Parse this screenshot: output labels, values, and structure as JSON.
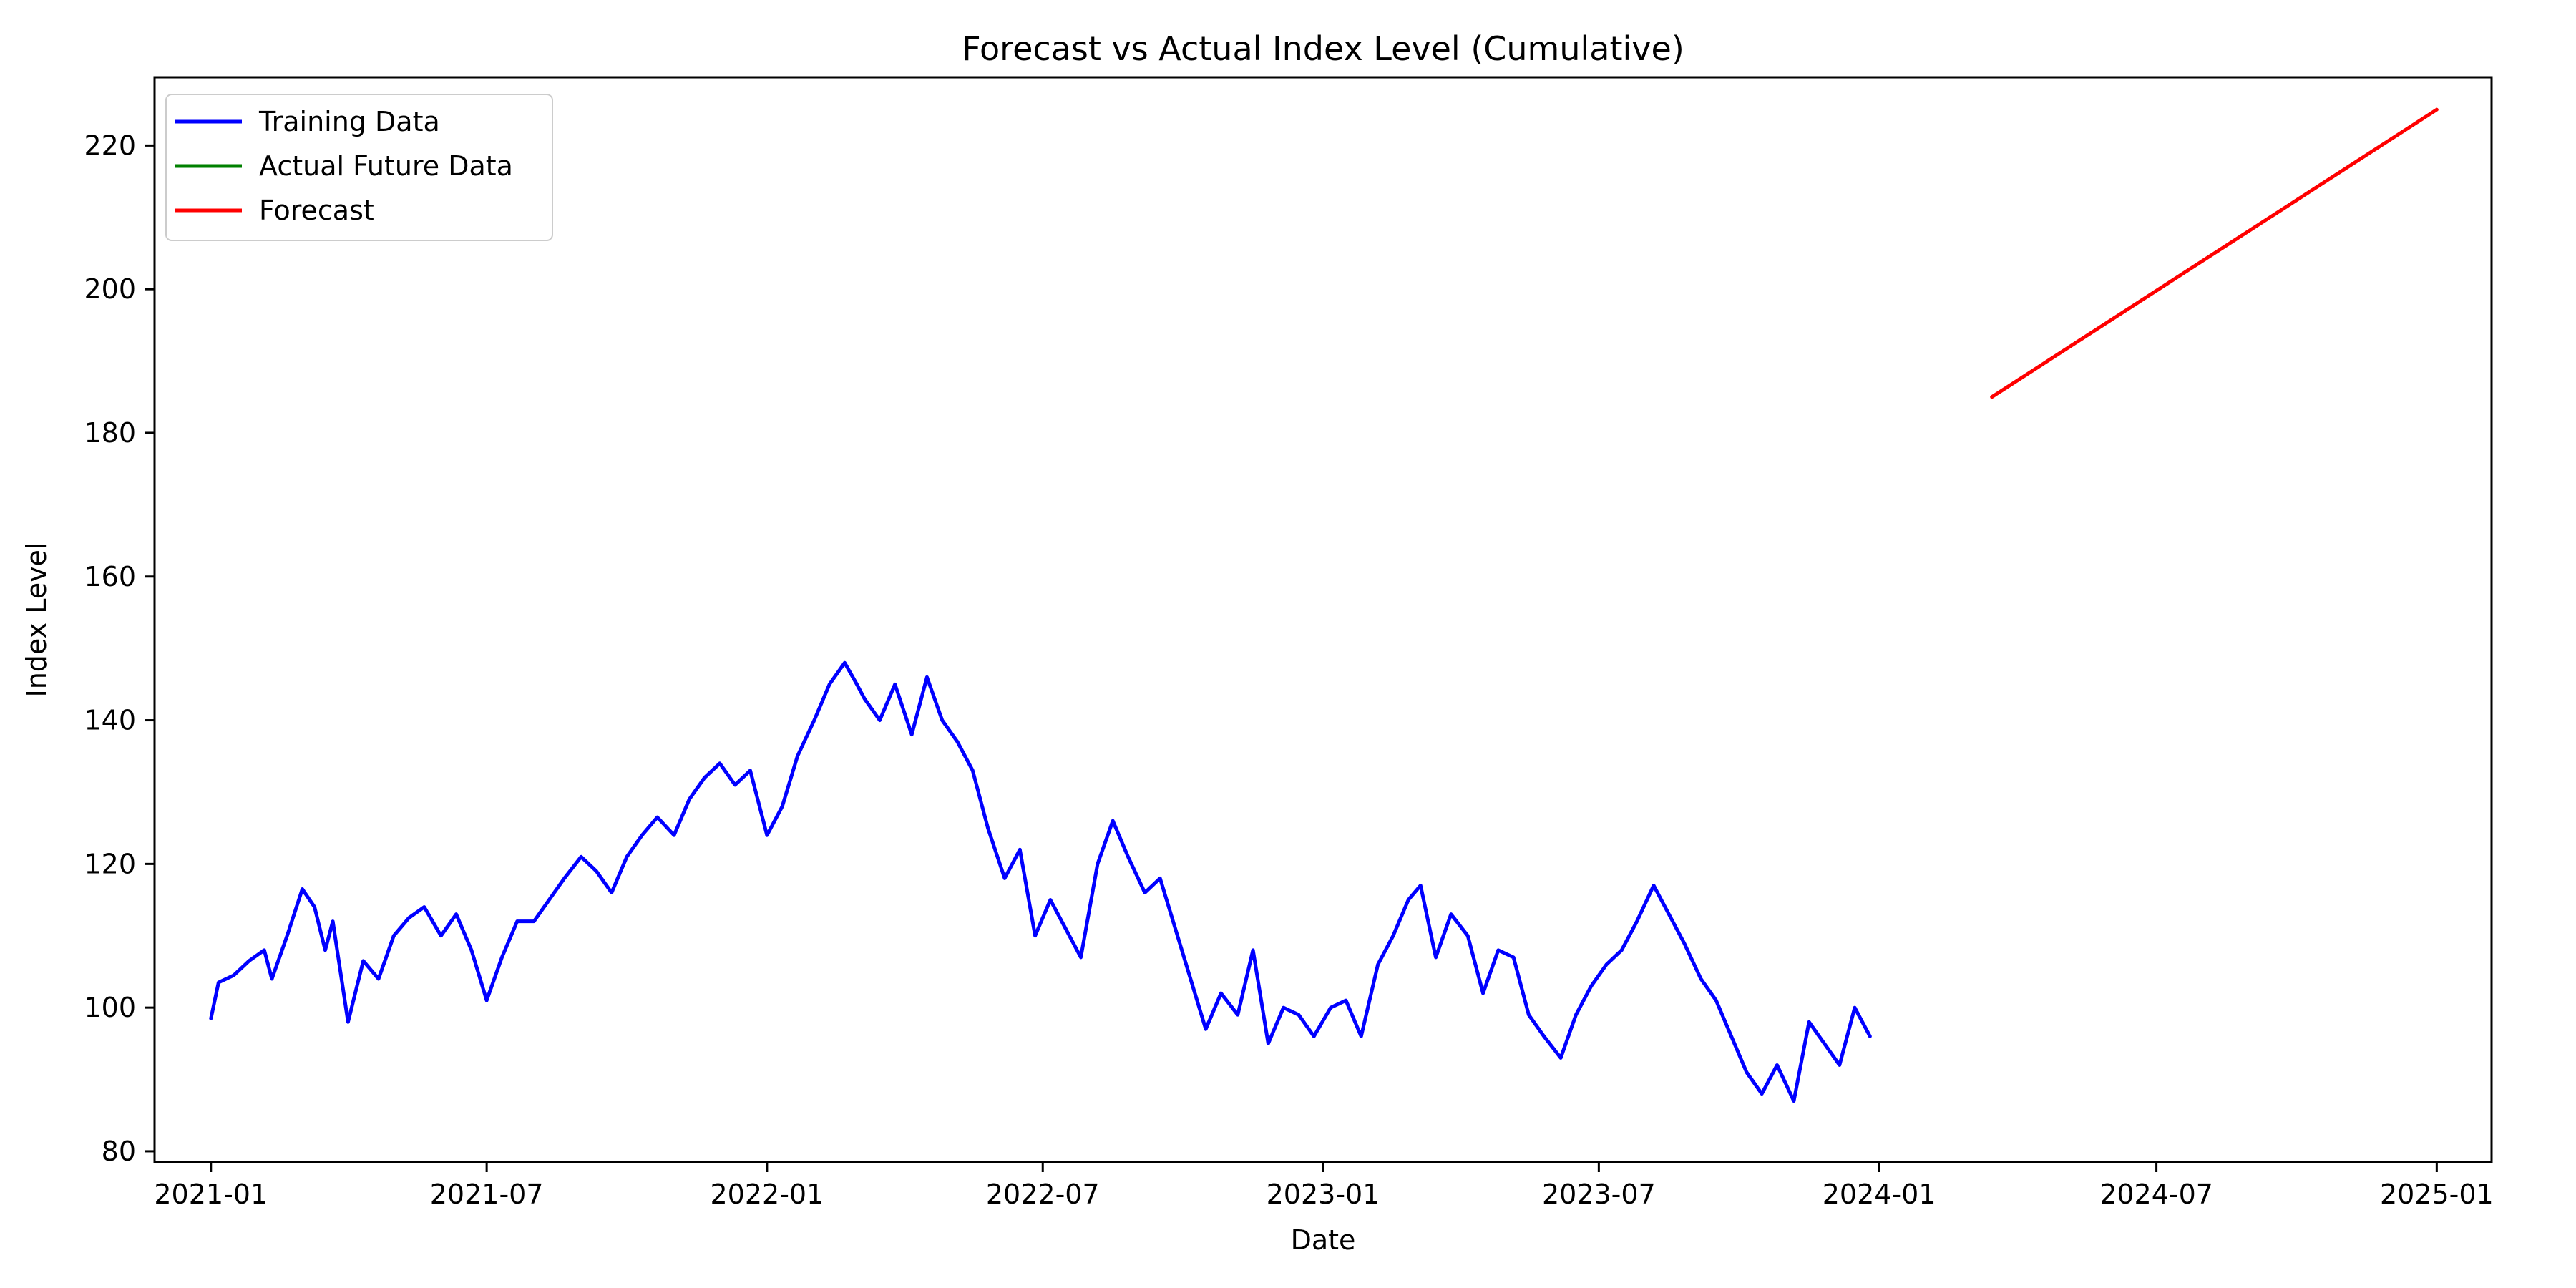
{
  "chart_data": {
    "type": "line",
    "title": "Forecast vs Actual Index Level (Cumulative)",
    "xlabel": "Date",
    "ylabel": "Index Level",
    "x_axis_type": "date",
    "xlim": [
      "2020-11-25",
      "2025-02-06"
    ],
    "ylim": [
      78.5,
      229.5
    ],
    "x_ticks": [
      "2021-01-01",
      "2021-07-01",
      "2022-01-01",
      "2022-07-01",
      "2023-01-01",
      "2023-07-01",
      "2024-01-01",
      "2024-07-01",
      "2025-01-01"
    ],
    "x_tick_labels": [
      "2021-01",
      "2021-07",
      "2022-01",
      "2022-07",
      "2023-01",
      "2023-07",
      "2024-01",
      "2024-07",
      "2025-01"
    ],
    "y_ticks": [
      80,
      100,
      120,
      140,
      160,
      180,
      200,
      220
    ],
    "y_tick_labels": [
      "80",
      "100",
      "120",
      "140",
      "160",
      "180",
      "200",
      "220"
    ],
    "grid": false,
    "legend_position": "top-left",
    "series": [
      {
        "name": "Training Data",
        "color": "#0000ff",
        "points": [
          [
            "2021-01-01",
            98.5
          ],
          [
            "2021-01-06",
            103.5
          ],
          [
            "2021-01-16",
            104.5
          ],
          [
            "2021-01-26",
            106.5
          ],
          [
            "2021-02-05",
            108
          ],
          [
            "2021-02-10",
            104
          ],
          [
            "2021-02-20",
            110
          ],
          [
            "2021-03-02",
            116.5
          ],
          [
            "2021-03-10",
            114
          ],
          [
            "2021-03-17",
            108
          ],
          [
            "2021-03-22",
            112
          ],
          [
            "2021-04-01",
            98
          ],
          [
            "2021-04-11",
            106.5
          ],
          [
            "2021-04-21",
            104
          ],
          [
            "2021-05-01",
            110
          ],
          [
            "2021-05-11",
            112.5
          ],
          [
            "2021-05-21",
            114
          ],
          [
            "2021-06-01",
            110
          ],
          [
            "2021-06-11",
            113
          ],
          [
            "2021-06-21",
            108
          ],
          [
            "2021-07-01",
            101
          ],
          [
            "2021-07-11",
            107
          ],
          [
            "2021-07-21",
            112
          ],
          [
            "2021-08-01",
            112
          ],
          [
            "2021-08-11",
            115
          ],
          [
            "2021-08-21",
            118
          ],
          [
            "2021-09-01",
            121
          ],
          [
            "2021-09-11",
            119
          ],
          [
            "2021-09-21",
            116
          ],
          [
            "2021-10-01",
            121
          ],
          [
            "2021-10-11",
            124
          ],
          [
            "2021-10-21",
            126.5
          ],
          [
            "2021-11-01",
            124
          ],
          [
            "2021-11-11",
            129
          ],
          [
            "2021-11-21",
            132
          ],
          [
            "2021-12-01",
            134
          ],
          [
            "2021-12-11",
            131
          ],
          [
            "2021-12-21",
            133
          ],
          [
            "2022-01-01",
            124
          ],
          [
            "2022-01-11",
            128
          ],
          [
            "2022-01-21",
            135
          ],
          [
            "2022-02-01",
            140
          ],
          [
            "2022-02-11",
            145
          ],
          [
            "2022-02-21",
            148
          ],
          [
            "2022-03-01",
            145
          ],
          [
            "2022-03-06",
            143
          ],
          [
            "2022-03-16",
            140
          ],
          [
            "2022-03-26",
            145
          ],
          [
            "2022-04-06",
            138
          ],
          [
            "2022-04-16",
            146
          ],
          [
            "2022-04-26",
            140
          ],
          [
            "2022-05-06",
            137
          ],
          [
            "2022-05-16",
            133
          ],
          [
            "2022-05-26",
            125
          ],
          [
            "2022-06-06",
            118
          ],
          [
            "2022-06-16",
            122
          ],
          [
            "2022-06-26",
            110
          ],
          [
            "2022-07-06",
            115
          ],
          [
            "2022-07-16",
            111
          ],
          [
            "2022-07-26",
            107
          ],
          [
            "2022-08-06",
            120
          ],
          [
            "2022-08-16",
            126
          ],
          [
            "2022-08-26",
            121
          ],
          [
            "2022-09-06",
            116
          ],
          [
            "2022-09-16",
            118
          ],
          [
            "2022-09-26",
            111
          ],
          [
            "2022-10-06",
            104
          ],
          [
            "2022-10-16",
            97
          ],
          [
            "2022-10-26",
            102
          ],
          [
            "2022-11-06",
            99
          ],
          [
            "2022-11-16",
            108
          ],
          [
            "2022-11-26",
            95
          ],
          [
            "2022-12-06",
            100
          ],
          [
            "2022-12-16",
            99
          ],
          [
            "2022-12-26",
            96
          ],
          [
            "2023-01-06",
            100
          ],
          [
            "2023-01-16",
            101
          ],
          [
            "2023-01-26",
            96
          ],
          [
            "2023-02-06",
            106
          ],
          [
            "2023-02-16",
            110
          ],
          [
            "2023-02-26",
            115
          ],
          [
            "2023-03-06",
            117
          ],
          [
            "2023-03-16",
            107
          ],
          [
            "2023-03-26",
            113
          ],
          [
            "2023-04-06",
            110
          ],
          [
            "2023-04-16",
            102
          ],
          [
            "2023-04-26",
            108
          ],
          [
            "2023-05-06",
            107
          ],
          [
            "2023-05-16",
            99
          ],
          [
            "2023-05-26",
            96
          ],
          [
            "2023-06-06",
            93
          ],
          [
            "2023-06-16",
            99
          ],
          [
            "2023-06-26",
            103
          ],
          [
            "2023-07-06",
            106
          ],
          [
            "2023-07-16",
            108
          ],
          [
            "2023-07-26",
            112
          ],
          [
            "2023-08-06",
            117
          ],
          [
            "2023-08-16",
            113
          ],
          [
            "2023-08-26",
            109
          ],
          [
            "2023-09-06",
            104
          ],
          [
            "2023-09-16",
            101
          ],
          [
            "2023-09-26",
            96
          ],
          [
            "2023-10-06",
            91
          ],
          [
            "2023-10-16",
            88
          ],
          [
            "2023-10-26",
            92
          ],
          [
            "2023-11-06",
            87
          ],
          [
            "2023-11-16",
            98
          ],
          [
            "2023-11-26",
            95
          ],
          [
            "2023-12-06",
            92
          ],
          [
            "2023-12-16",
            100
          ],
          [
            "2023-12-26",
            96
          ]
        ]
      },
      {
        "name": "Actual Future Data",
        "color": "#008000",
        "points": []
      },
      {
        "name": "Forecast",
        "color": "#ff0000",
        "points": [
          [
            "2024-03-15",
            185
          ],
          [
            "2025-01-01",
            225
          ]
        ]
      }
    ]
  }
}
